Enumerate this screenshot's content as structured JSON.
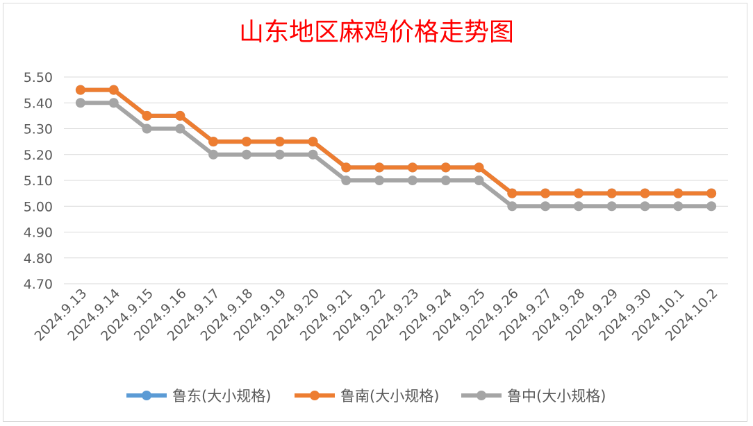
{
  "chart_data": {
    "type": "line",
    "title": "山东地区麻鸡价格走势图",
    "xlabel": "",
    "ylabel": "",
    "categories": [
      "2024.9.13",
      "2024.9.14",
      "2024.9.15",
      "2024.9.16",
      "2024.9.17",
      "2024.9.18",
      "2024.9.19",
      "2024.9.20",
      "2024.9.21",
      "2024.9.22",
      "2024.9.23",
      "2024.9.24",
      "2024.9.25",
      "2024.9.26",
      "2024.9.27",
      "2024.9.28",
      "2024.9.29",
      "2024.9.30",
      "2024.10.1",
      "2024.10.2"
    ],
    "ylim": [
      4.7,
      5.5
    ],
    "yticks": [
      "5.50",
      "5.40",
      "5.30",
      "5.20",
      "5.10",
      "5.00",
      "4.90",
      "4.80",
      "4.70"
    ],
    "grid": true,
    "legend_position": "bottom",
    "series": [
      {
        "name": "鲁东(大小规格)",
        "color": "#5b9bd5",
        "values": [
          5.45,
          5.45,
          5.35,
          5.35,
          5.25,
          5.25,
          5.25,
          5.25,
          5.15,
          5.15,
          5.15,
          5.15,
          5.15,
          5.05,
          5.05,
          5.05,
          5.05,
          5.05,
          5.05,
          5.05
        ]
      },
      {
        "name": "鲁南(大小规格)",
        "color": "#ed7d31",
        "values": [
          5.45,
          5.45,
          5.35,
          5.35,
          5.25,
          5.25,
          5.25,
          5.25,
          5.15,
          5.15,
          5.15,
          5.15,
          5.15,
          5.05,
          5.05,
          5.05,
          5.05,
          5.05,
          5.05,
          5.05
        ]
      },
      {
        "name": "鲁中(大小规格)",
        "color": "#a5a5a5",
        "values": [
          5.4,
          5.4,
          5.3,
          5.3,
          5.2,
          5.2,
          5.2,
          5.2,
          5.1,
          5.1,
          5.1,
          5.1,
          5.1,
          5.0,
          5.0,
          5.0,
          5.0,
          5.0,
          5.0,
          5.0
        ]
      }
    ],
    "title_color": "#ff0000"
  }
}
